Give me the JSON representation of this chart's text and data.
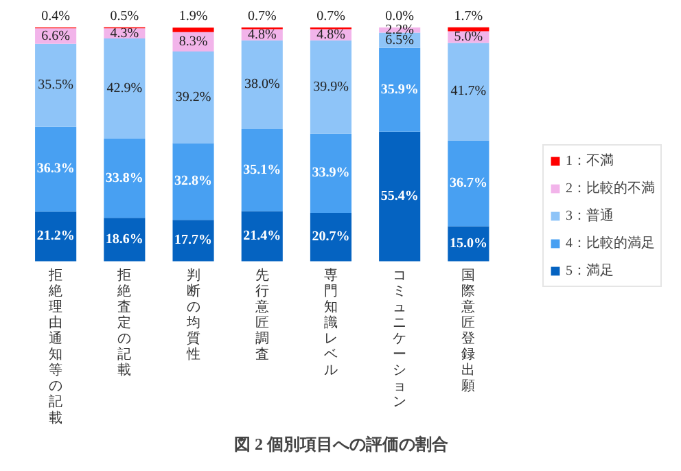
{
  "chart_data": {
    "type": "bar",
    "stacked": true,
    "title": "図 2 個別項目への評価の割合",
    "categories": [
      "拒絶理由通知等の記載",
      "拒絶査定の記載",
      "判断の均質性",
      "先行意匠調査",
      "専門知識レベル",
      "コミュニケーション",
      "国際意匠登録出願"
    ],
    "series": [
      {
        "name": "5：満足",
        "color": "#0563c1",
        "values": [
          21.2,
          18.6,
          17.7,
          21.4,
          20.7,
          55.4,
          15.0
        ],
        "value_labels": [
          "21.2%",
          "18.6%",
          "17.7%",
          "21.4%",
          "20.7%",
          "55.4%",
          "15.0%"
        ]
      },
      {
        "name": "4：比較的満足",
        "color": "#48a0f2",
        "values": [
          36.3,
          33.8,
          32.8,
          35.1,
          33.9,
          35.9,
          36.7
        ],
        "value_labels": [
          "36.3%",
          "33.8%",
          "32.8%",
          "35.1%",
          "33.9%",
          "35.9%",
          "36.7%"
        ]
      },
      {
        "name": "3：普通",
        "color": "#8ec4f8",
        "values": [
          35.5,
          42.9,
          39.2,
          38.0,
          39.9,
          6.5,
          41.7
        ],
        "value_labels": [
          "35.5%",
          "42.9%",
          "39.2%",
          "38.0%",
          "39.9%",
          "6.5%",
          "41.7%"
        ]
      },
      {
        "name": "2：比較的不満",
        "color": "#f2b4ea",
        "values": [
          6.6,
          4.3,
          8.3,
          4.8,
          4.8,
          2.2,
          5.0
        ],
        "value_labels": [
          "6.6%",
          "4.3%",
          "8.3%",
          "4.8%",
          "4.8%",
          "2.2%",
          "5.0%"
        ]
      },
      {
        "name": "1：不満",
        "color": "#ff0000",
        "values": [
          0.4,
          0.5,
          1.9,
          0.7,
          0.7,
          0.0,
          1.7
        ],
        "value_labels": [
          "0.4%",
          "0.5%",
          "1.9%",
          "0.7%",
          "0.7%",
          "0.0%",
          "1.7%"
        ]
      }
    ],
    "legend": "right"
  }
}
